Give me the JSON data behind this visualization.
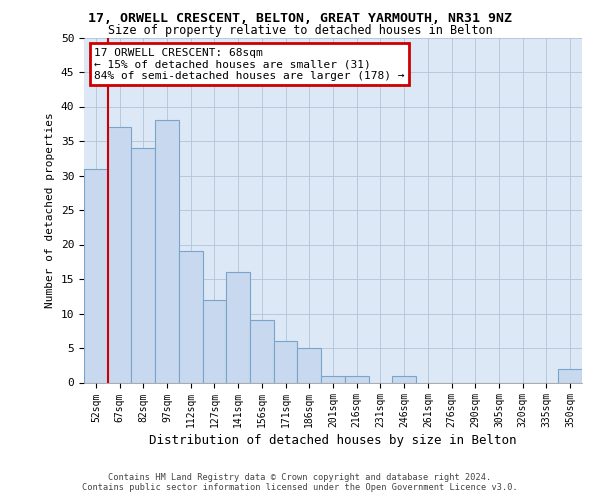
{
  "title1": "17, ORWELL CRESCENT, BELTON, GREAT YARMOUTH, NR31 9NZ",
  "title2": "Size of property relative to detached houses in Belton",
  "xlabel": "Distribution of detached houses by size in Belton",
  "ylabel": "Number of detached properties",
  "bar_labels": [
    "52sqm",
    "67sqm",
    "82sqm",
    "97sqm",
    "112sqm",
    "127sqm",
    "141sqm",
    "156sqm",
    "171sqm",
    "186sqm",
    "201sqm",
    "216sqm",
    "231sqm",
    "246sqm",
    "261sqm",
    "276sqm",
    "290sqm",
    "305sqm",
    "320sqm",
    "335sqm",
    "350sqm"
  ],
  "bar_values": [
    31,
    37,
    34,
    38,
    19,
    12,
    16,
    9,
    6,
    5,
    1,
    1,
    0,
    1,
    0,
    0,
    0,
    0,
    0,
    0,
    2
  ],
  "bar_color": "#c8d8ee",
  "bar_edge_color": "#7ba4cc",
  "vline_x_index": 1,
  "annotation_title": "17 ORWELL CRESCENT: 68sqm",
  "annotation_line1": "← 15% of detached houses are smaller (31)",
  "annotation_line2": "84% of semi-detached houses are larger (178) →",
  "annotation_box_color": "#ffffff",
  "annotation_box_edge": "#cc0000",
  "vline_color": "#cc0000",
  "ylim": [
    0,
    50
  ],
  "yticks": [
    0,
    5,
    10,
    15,
    20,
    25,
    30,
    35,
    40,
    45,
    50
  ],
  "footer1": "Contains HM Land Registry data © Crown copyright and database right 2024.",
  "footer2": "Contains public sector information licensed under the Open Government Licence v3.0.",
  "bg_color": "#dce8f5"
}
